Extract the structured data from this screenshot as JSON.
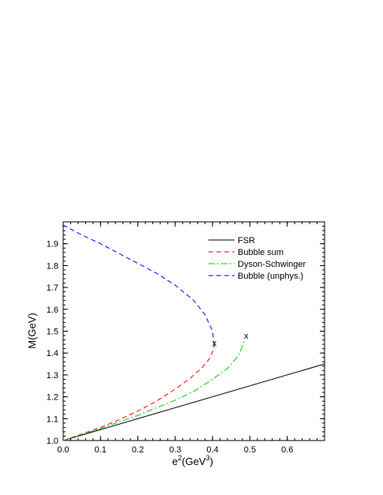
{
  "chart_data": {
    "type": "line",
    "title": "",
    "xlabel_base": "e",
    "xlabel_sup": "2",
    "xlabel_unit_base": "(GeV",
    "xlabel_unit_sup": "3",
    "xlabel_unit_close": ")",
    "ylabel": "M(GeV)",
    "xlim": [
      0.0,
      0.7
    ],
    "ylim": [
      1.0,
      2.0
    ],
    "xticks": [
      "0.0",
      "0.1",
      "0.2",
      "0.3",
      "0.4",
      "0.5",
      "0.6"
    ],
    "xtick_values": [
      0.0,
      0.1,
      0.2,
      0.3,
      0.4,
      0.5,
      0.6
    ],
    "yticks": [
      "1.0",
      "1.1",
      "1.2",
      "1.3",
      "1.4",
      "1.5",
      "1.6",
      "1.7",
      "1.8",
      "1.9"
    ],
    "ytick_values": [
      1.0,
      1.1,
      1.2,
      1.3,
      1.4,
      1.5,
      1.6,
      1.7,
      1.8,
      1.9
    ],
    "grid": false,
    "legend_position": "top-right",
    "series": [
      {
        "name": "FSR",
        "color": "#000000",
        "dash": "solid",
        "x": [
          0.0,
          0.7
        ],
        "y": [
          1.0,
          1.35
        ]
      },
      {
        "name": "Bubble sum",
        "color": "#ff0000",
        "dash": "dashed",
        "x": [
          0.0,
          0.05,
          0.1,
          0.15,
          0.2,
          0.25,
          0.3,
          0.34,
          0.37,
          0.39,
          0.4,
          0.405
        ],
        "y": [
          1.0,
          1.03,
          1.06,
          1.095,
          1.135,
          1.18,
          1.235,
          1.285,
          1.33,
          1.37,
          1.405,
          1.435
        ]
      },
      {
        "name": "Dyson-Schwinger",
        "color": "#00cc00",
        "dash": "dashdot",
        "x": [
          0.0,
          0.1,
          0.2,
          0.3,
          0.35,
          0.4,
          0.44,
          0.47,
          0.485
        ],
        "y": [
          1.0,
          1.055,
          1.115,
          1.185,
          1.225,
          1.28,
          1.33,
          1.39,
          1.455
        ]
      },
      {
        "name": "Bubble (unphys.)",
        "color": "#0000ff",
        "dash": "dashed",
        "x": [
          0.405,
          0.4,
          0.38,
          0.35,
          0.3,
          0.25,
          0.2,
          0.15,
          0.1,
          0.05,
          0.0
        ],
        "y": [
          1.435,
          1.5,
          1.575,
          1.64,
          1.71,
          1.765,
          1.81,
          1.855,
          1.9,
          1.94,
          1.985
        ]
      }
    ],
    "markers": [
      {
        "label": "x",
        "x": 0.405,
        "y": 1.445
      },
      {
        "label": "x",
        "x": 0.49,
        "y": 1.48
      }
    ]
  }
}
